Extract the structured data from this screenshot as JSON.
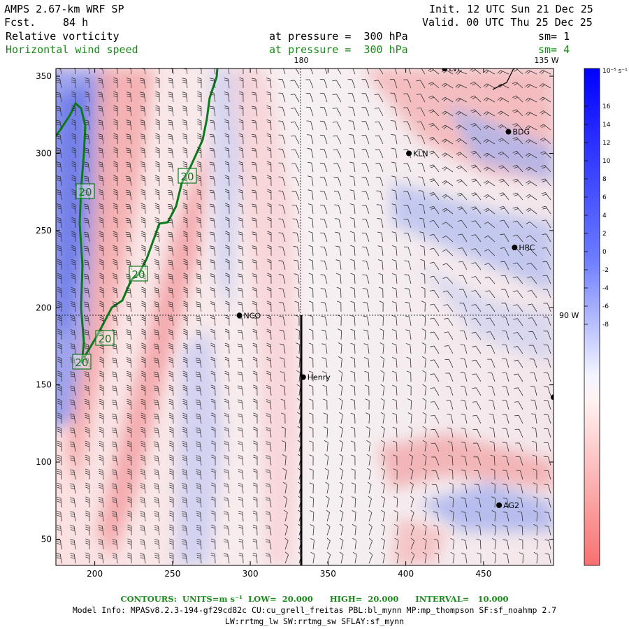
{
  "header": {
    "model": "AMPS 2.67-km WRF SP",
    "fcst_label": "Fcst.",
    "fcst_value": "84 h",
    "init": "Init. 12 UTC Sun 21 Dec 25",
    "valid": "Valid. 00 UTC Thu 25 Dec 25",
    "field1": "Relative vorticity",
    "field1_level": "at pressure =  300 hPa",
    "field1_sm": "sm= 1",
    "field2": "Horizontal wind speed",
    "field2_level": "at pressure =  300 hPa",
    "field2_sm": "sm= 4"
  },
  "map": {
    "x_ticks": [
      "200",
      "250",
      "300",
      "350",
      "400",
      "450"
    ],
    "y_ticks": [
      "50",
      "100",
      "150",
      "200",
      "250",
      "300",
      "350"
    ],
    "lon_labels": {
      "top_180": "180",
      "top_135w": "135 W",
      "right_90w": "90 W"
    },
    "stations": [
      {
        "name": "NCO",
        "x": 293,
        "y": 195
      },
      {
        "name": "Henry",
        "x": 334,
        "y": 155
      },
      {
        "name": "KLN",
        "x": 402,
        "y": 300
      },
      {
        "name": "BDG",
        "x": 466,
        "y": 314
      },
      {
        "name": "HRC",
        "x": 470,
        "y": 239
      },
      {
        "name": "AG2",
        "x": 460,
        "y": 72
      },
      {
        "name": "LVE",
        "x": 425,
        "y": 355
      },
      {
        "name": "",
        "x": 495,
        "y": 142
      }
    ],
    "contour_labels": [
      "20",
      "20",
      "20",
      "20",
      "20"
    ],
    "colors": {
      "positive": "#3355ff",
      "negative": "#ff5555",
      "contour": "#0b7a1a"
    }
  },
  "colorbar": {
    "unit": "10⁻⁵ s⁻¹",
    "ticks": [
      "16",
      "14",
      "12",
      "10",
      "8",
      "6",
      "4",
      "2",
      "0",
      "-2",
      "-4",
      "-6",
      "-8"
    ]
  },
  "footer": {
    "contours": "CONTOURS:  UNITS=m s⁻¹  LOW=  20.000      HIGH=  20.000      INTERVAL=   10.000",
    "model_info": "Model Info: MPASv8.2.3-194-gf29cd82c CU:cu_grell_freitas PBL:bl_mynn MP:mp_thompson SF:sf_noahmp 2.7",
    "model_info2": "LW:rrtmg_lw SW:rrtmg_sw SFLAY:sf_mynn"
  }
}
